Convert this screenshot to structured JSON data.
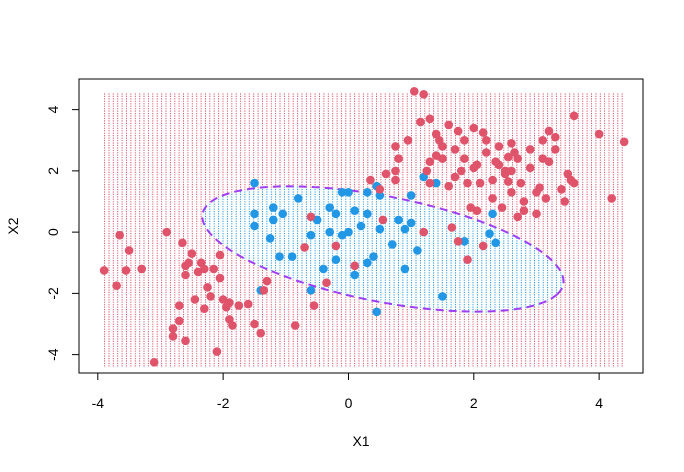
{
  "chart_data": {
    "type": "scatter",
    "title": "",
    "xlabel": "X1",
    "ylabel": "X2",
    "xlim": [
      -4.3,
      4.7
    ],
    "ylim": [
      -4.6,
      5.0
    ],
    "x_ticks": [
      -4,
      -2,
      0,
      2,
      4
    ],
    "y_ticks": [
      -4,
      -2,
      0,
      2,
      4
    ],
    "x_tick_labels": [
      "-4",
      "-2",
      "0",
      "2",
      "4"
    ],
    "y_tick_labels": [
      "-4",
      "-2",
      "0",
      "2",
      "4"
    ],
    "grid": false,
    "legend": "none",
    "background_grid": {
      "x_range": [
        -3.9,
        4.4
      ],
      "y_range": [
        -4.35,
        4.6
      ],
      "x_step": 0.07,
      "y_step": 0.08,
      "inside_color": "#2297E6",
      "outside_color": "#DF536B"
    },
    "boundary": {
      "type": "ellipse",
      "center": [
        0.55,
        -0.55
      ],
      "semi_axes": [
        3.15,
        1.6
      ],
      "angle_deg": -28,
      "color": "#9E3FF5",
      "style": "dashed"
    },
    "series": [
      {
        "color": "#2297E6",
        "points": [
          [
            -1.5,
            1.6
          ],
          [
            -1.5,
            0.6
          ],
          [
            -1.2,
            0.8
          ],
          [
            -1.2,
            0.4
          ],
          [
            -1.05,
            0.6
          ],
          [
            -0.8,
            1.1
          ],
          [
            -0.6,
            -0.1
          ],
          [
            -0.3,
            0.8
          ],
          [
            -0.2,
            0.6
          ],
          [
            -0.1,
            1.3
          ],
          [
            0.0,
            1.3
          ],
          [
            0.1,
            0.7
          ],
          [
            0.3,
            1.3
          ],
          [
            0.45,
            1.5
          ],
          [
            0.5,
            1.2
          ],
          [
            0.3,
            0.6
          ],
          [
            0.2,
            0.2
          ],
          [
            0.5,
            0.1
          ],
          [
            0.9,
            0.1
          ],
          [
            0.8,
            0.4
          ],
          [
            1.0,
            0.3
          ],
          [
            1.1,
            -0.6
          ],
          [
            1.0,
            1.2
          ],
          [
            1.2,
            1.8
          ],
          [
            1.4,
            1.6
          ],
          [
            0.7,
            -0.4
          ],
          [
            0.4,
            -0.8
          ],
          [
            0.3,
            -1.0
          ],
          [
            0.1,
            -1.4
          ],
          [
            -0.2,
            -0.9
          ],
          [
            -0.4,
            -1.2
          ],
          [
            -0.6,
            -1.9
          ],
          [
            -0.9,
            -0.8
          ],
          [
            -1.1,
            -0.8
          ],
          [
            -1.25,
            -0.2
          ],
          [
            -1.4,
            -1.9
          ],
          [
            -0.1,
            -0.1
          ],
          [
            0.0,
            0.0
          ],
          [
            -0.3,
            0.0
          ],
          [
            -0.5,
            0.4
          ],
          [
            1.5,
            -2.1
          ],
          [
            0.45,
            -2.6
          ],
          [
            0.9,
            -1.2
          ],
          [
            2.25,
            -0.05
          ],
          [
            2.35,
            -0.35
          ],
          [
            1.85,
            -0.3
          ],
          [
            2.3,
            0.6
          ],
          [
            -1.5,
            0.2
          ]
        ]
      },
      {
        "color": "#DF536B",
        "points": [
          [
            -3.9,
            -1.25
          ],
          [
            -3.7,
            -1.75
          ],
          [
            -3.65,
            -0.1
          ],
          [
            -3.55,
            -1.25
          ],
          [
            -3.5,
            -0.6
          ],
          [
            -3.3,
            -1.2
          ],
          [
            -3.1,
            -4.25
          ],
          [
            -2.9,
            0.0
          ],
          [
            -2.8,
            -3.4
          ],
          [
            -2.7,
            -2.9
          ],
          [
            -2.7,
            -2.4
          ],
          [
            -2.6,
            -3.55
          ],
          [
            -2.65,
            -0.35
          ],
          [
            -2.6,
            -1.1
          ],
          [
            -2.5,
            -0.7
          ],
          [
            -2.45,
            -2.2
          ],
          [
            -2.4,
            -1.3
          ],
          [
            -2.35,
            -1.0
          ],
          [
            -2.3,
            -2.5
          ],
          [
            -2.25,
            -1.8
          ],
          [
            -2.2,
            -2.1
          ],
          [
            -2.15,
            -1.2
          ],
          [
            -2.1,
            -3.9
          ],
          [
            -2.05,
            -1.5
          ],
          [
            -2.0,
            -2.2
          ],
          [
            -1.95,
            -2.45
          ],
          [
            -1.9,
            -2.85
          ],
          [
            -1.85,
            -3.05
          ],
          [
            -1.75,
            -2.4
          ],
          [
            -1.6,
            -2.35
          ],
          [
            -1.5,
            -3.0
          ],
          [
            -1.4,
            -3.3
          ],
          [
            -1.35,
            -1.9
          ],
          [
            -1.3,
            -1.6
          ],
          [
            -0.85,
            -3.05
          ],
          [
            -0.7,
            -0.5
          ],
          [
            -0.55,
            -2.4
          ],
          [
            -0.35,
            -1.65
          ],
          [
            -0.2,
            -0.45
          ],
          [
            -2.55,
            -1.0
          ],
          [
            -2.8,
            -3.15
          ],
          [
            -2.3,
            -1.2
          ],
          [
            -1.9,
            -2.3
          ],
          [
            -2.05,
            -0.75
          ],
          [
            -2.6,
            -1.4
          ],
          [
            1.05,
            4.6
          ],
          [
            1.2,
            4.5
          ],
          [
            1.3,
            3.7
          ],
          [
            1.15,
            3.6
          ],
          [
            1.4,
            3.2
          ],
          [
            1.6,
            3.5
          ],
          [
            1.75,
            3.3
          ],
          [
            1.85,
            3.0
          ],
          [
            2.0,
            3.4
          ],
          [
            2.2,
            3.0
          ],
          [
            2.4,
            2.8
          ],
          [
            2.6,
            2.9
          ],
          [
            2.9,
            2.7
          ],
          [
            3.1,
            3.0
          ],
          [
            3.2,
            3.3
          ],
          [
            3.3,
            2.7
          ],
          [
            3.6,
            3.8
          ],
          [
            4.0,
            3.2
          ],
          [
            4.4,
            2.95
          ],
          [
            4.2,
            1.1
          ],
          [
            3.5,
            1.9
          ],
          [
            3.6,
            1.6
          ],
          [
            3.4,
            1.4
          ],
          [
            3.15,
            1.1
          ],
          [
            3.0,
            1.3
          ],
          [
            2.8,
            0.7
          ],
          [
            2.7,
            0.5
          ],
          [
            2.6,
            1.3
          ],
          [
            2.5,
            1.9
          ],
          [
            2.4,
            2.2
          ],
          [
            2.3,
            1.7
          ],
          [
            2.2,
            2.6
          ],
          [
            2.1,
            1.6
          ],
          [
            2.0,
            2.1
          ],
          [
            1.9,
            1.6
          ],
          [
            1.8,
            2.0
          ],
          [
            1.7,
            2.7
          ],
          [
            1.6,
            1.5
          ],
          [
            1.5,
            2.4
          ],
          [
            1.4,
            2.5
          ],
          [
            1.3,
            2.3
          ],
          [
            1.25,
            2.0
          ],
          [
            0.8,
            2.4
          ],
          [
            0.75,
            2.8
          ],
          [
            0.6,
            1.9
          ],
          [
            0.5,
            1.4
          ],
          [
            0.55,
            0.4
          ],
          [
            1.3,
            1.6
          ],
          [
            1.95,
            0.8
          ],
          [
            2.05,
            0.7
          ],
          [
            2.3,
            1.1
          ],
          [
            2.45,
            0.8
          ],
          [
            1.2,
            0.0
          ],
          [
            1.75,
            -0.3
          ],
          [
            1.9,
            -0.9
          ],
          [
            2.15,
            -0.45
          ],
          [
            2.7,
            2.4
          ],
          [
            2.9,
            2.1
          ],
          [
            3.1,
            2.4
          ],
          [
            2.6,
            2.0
          ],
          [
            2.35,
            2.3
          ],
          [
            2.55,
            2.45
          ],
          [
            3.0,
            0.6
          ],
          [
            3.45,
            1.0
          ],
          [
            3.55,
            1.7
          ],
          [
            2.65,
            2.6
          ],
          [
            1.85,
            2.4
          ],
          [
            2.05,
            2.2
          ],
          [
            1.7,
            1.8
          ],
          [
            2.75,
            1.6
          ],
          [
            1.5,
            2.8
          ],
          [
            1.45,
            3.0
          ],
          [
            0.95,
            3.0
          ],
          [
            0.35,
            1.7
          ],
          [
            0.75,
            1.7
          ],
          [
            -0.6,
            0.5
          ],
          [
            0.1,
            -1.1
          ],
          [
            0.75,
            2.0
          ],
          [
            1.65,
            0.15
          ],
          [
            2.8,
            1.0
          ],
          [
            3.3,
            3.1
          ],
          [
            3.05,
            1.45
          ],
          [
            2.55,
            1.65
          ],
          [
            3.2,
            2.3
          ],
          [
            2.15,
            3.25
          ],
          [
            2.5,
            2.0
          ]
        ]
      }
    ]
  }
}
